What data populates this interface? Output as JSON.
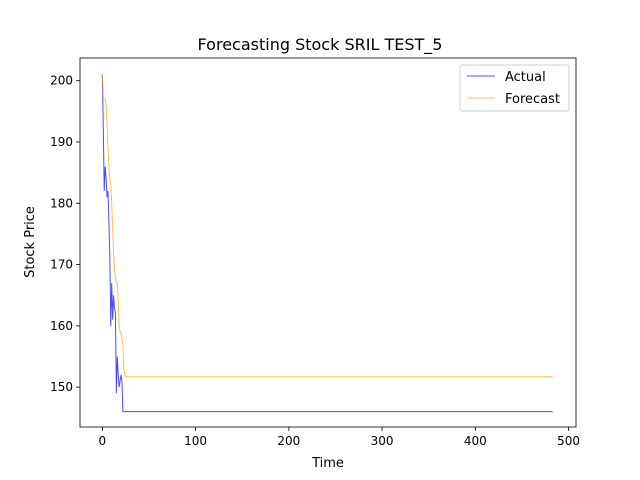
{
  "chart_data": {
    "type": "line",
    "title": "Forecasting Stock SRIL TEST_5",
    "xlabel": "Time",
    "ylabel": "Stock Price",
    "xlim": [
      -24,
      508
    ],
    "ylim": [
      143.5,
      203.7
    ],
    "xticks": [
      0,
      100,
      200,
      300,
      400,
      500
    ],
    "yticks": [
      150,
      160,
      170,
      180,
      190,
      200
    ],
    "grid": false,
    "legend_position": "top-right",
    "series": [
      {
        "name": "Actual",
        "color": "#0000ff",
        "x": [
          0,
          1,
          2,
          3,
          4,
          5,
          6,
          7,
          8,
          9,
          10,
          11,
          12,
          13,
          14,
          15,
          16,
          17,
          18,
          19,
          20,
          21,
          22,
          23,
          24,
          25,
          30,
          100,
          200,
          300,
          400,
          483
        ],
        "y": [
          201,
          192,
          182,
          186,
          184,
          181,
          182,
          177,
          171,
          160,
          167,
          161,
          165,
          163,
          162,
          149,
          155,
          152,
          150,
          151,
          152,
          151,
          146,
          146,
          146,
          146,
          146,
          146,
          146,
          146,
          146,
          146
        ]
      },
      {
        "name": "Forecast",
        "color": "#ffa500",
        "x": [
          0,
          1,
          2,
          3,
          4,
          5,
          6,
          7,
          8,
          9,
          10,
          11,
          12,
          13,
          14,
          15,
          16,
          17,
          18,
          19,
          20,
          21,
          22,
          23,
          24,
          25,
          26,
          27,
          28,
          30,
          100,
          200,
          300,
          400,
          483
        ],
        "y": [
          201,
          197,
          197,
          197,
          196,
          193,
          189,
          186,
          184,
          183,
          180,
          176,
          172,
          169,
          168,
          167,
          167,
          164,
          160,
          159,
          159,
          158,
          157,
          153,
          152,
          151.7,
          151.7,
          151.7,
          151.7,
          151.7,
          151.7,
          151.7,
          151.7,
          151.7,
          151.7
        ]
      }
    ]
  }
}
